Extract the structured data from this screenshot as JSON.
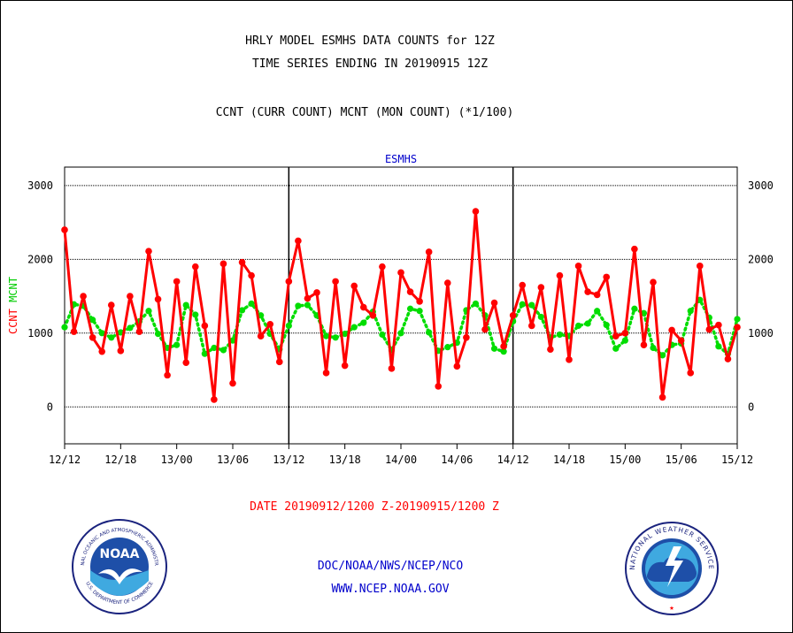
{
  "title_line1": "HRLY MODEL ESMHS DATA COUNTS for 12Z",
  "title_line2": "TIME SERIES ENDING IN 20190915 12Z",
  "subtitle": "CCNT (CURR COUNT) MCNT (MON COUNT) (*1/100)",
  "date_range": "DATE 20190912/1200 Z-20190915/1200 Z",
  "footer_org": "DOC/NOAA/NWS/NCEP/NCO",
  "footer_url": "WWW.NCEP.NOAA.GOV",
  "logos": {
    "noaa_text": "NOAA",
    "noaa_ring": "NATIONAL OCEANIC AND ATMOSPHERIC ADMINISTRATION",
    "noaa_ring_bottom": "U.S. DEPARTMENT OF COMMERCE",
    "nws_ring": "NATIONAL WEATHER SERVICE"
  },
  "chart_data": {
    "type": "line",
    "title": "ESMHS",
    "ylabel_left": [
      "CCNT",
      "MCNT"
    ],
    "ylim": [
      -500,
      3250
    ],
    "yticks": [
      0,
      1000,
      2000,
      3000
    ],
    "xlim": [
      0,
      72
    ],
    "grid": true,
    "xticks": [
      {
        "x": 0,
        "label": "12/12"
      },
      {
        "x": 6,
        "label": "12/18"
      },
      {
        "x": 12,
        "label": "13/00"
      },
      {
        "x": 18,
        "label": "13/06"
      },
      {
        "x": 24,
        "label": "13/12"
      },
      {
        "x": 30,
        "label": "13/18"
      },
      {
        "x": 36,
        "label": "14/00"
      },
      {
        "x": 42,
        "label": "14/06"
      },
      {
        "x": 48,
        "label": "14/12"
      },
      {
        "x": 54,
        "label": "14/18"
      },
      {
        "x": 60,
        "label": "15/00"
      },
      {
        "x": 66,
        "label": "15/06"
      },
      {
        "x": 72,
        "label": "15/12"
      }
    ],
    "day_dividers": [
      24,
      48
    ],
    "colors": {
      "ccnt": "#ff0000",
      "mcnt": "#00dd00",
      "ccnt_label": "#ff0000",
      "mcnt_label": "#00cc00",
      "title": "#0000cc",
      "date": "#ff0000",
      "footer": "#0000cc"
    },
    "series": [
      {
        "name": "CCNT",
        "values": [
          2400,
          1020,
          1500,
          940,
          750,
          1380,
          760,
          1500,
          1020,
          2110,
          1460,
          430,
          1700,
          600,
          1900,
          1100,
          100,
          1940,
          320,
          1960,
          1780,
          960,
          1120,
          610,
          1700,
          2250,
          1470,
          1550,
          460,
          1700,
          560,
          1640,
          1350,
          1240,
          1900,
          520,
          1820,
          1560,
          1430,
          2100,
          280,
          1680,
          550,
          940,
          2650,
          1050,
          1410,
          820,
          1240,
          1650,
          1100,
          1620,
          780,
          1780,
          640,
          1910,
          1560,
          1520,
          1760,
          960,
          1000,
          2140,
          840,
          1690,
          130,
          1040,
          900,
          460,
          1910,
          1050,
          1110,
          650,
          1080
        ]
      },
      {
        "name": "MCNT",
        "values": [
          1080,
          1390,
          1370,
          1180,
          1000,
          940,
          1010,
          1070,
          1160,
          1300,
          990,
          800,
          840,
          1380,
          1250,
          720,
          800,
          770,
          900,
          1310,
          1400,
          1240,
          990,
          780,
          1100,
          1370,
          1380,
          1240,
          960,
          940,
          990,
          1080,
          1140,
          1290,
          980,
          770,
          1000,
          1330,
          1300,
          1010,
          760,
          810,
          870,
          1310,
          1400,
          1240,
          790,
          750,
          1160,
          1390,
          1380,
          1220,
          940,
          980,
          960,
          1100,
          1130,
          1300,
          1110,
          790,
          900,
          1330,
          1270,
          800,
          700,
          840,
          860,
          1300,
          1450,
          1210,
          820,
          720,
          1190
        ]
      }
    ]
  }
}
